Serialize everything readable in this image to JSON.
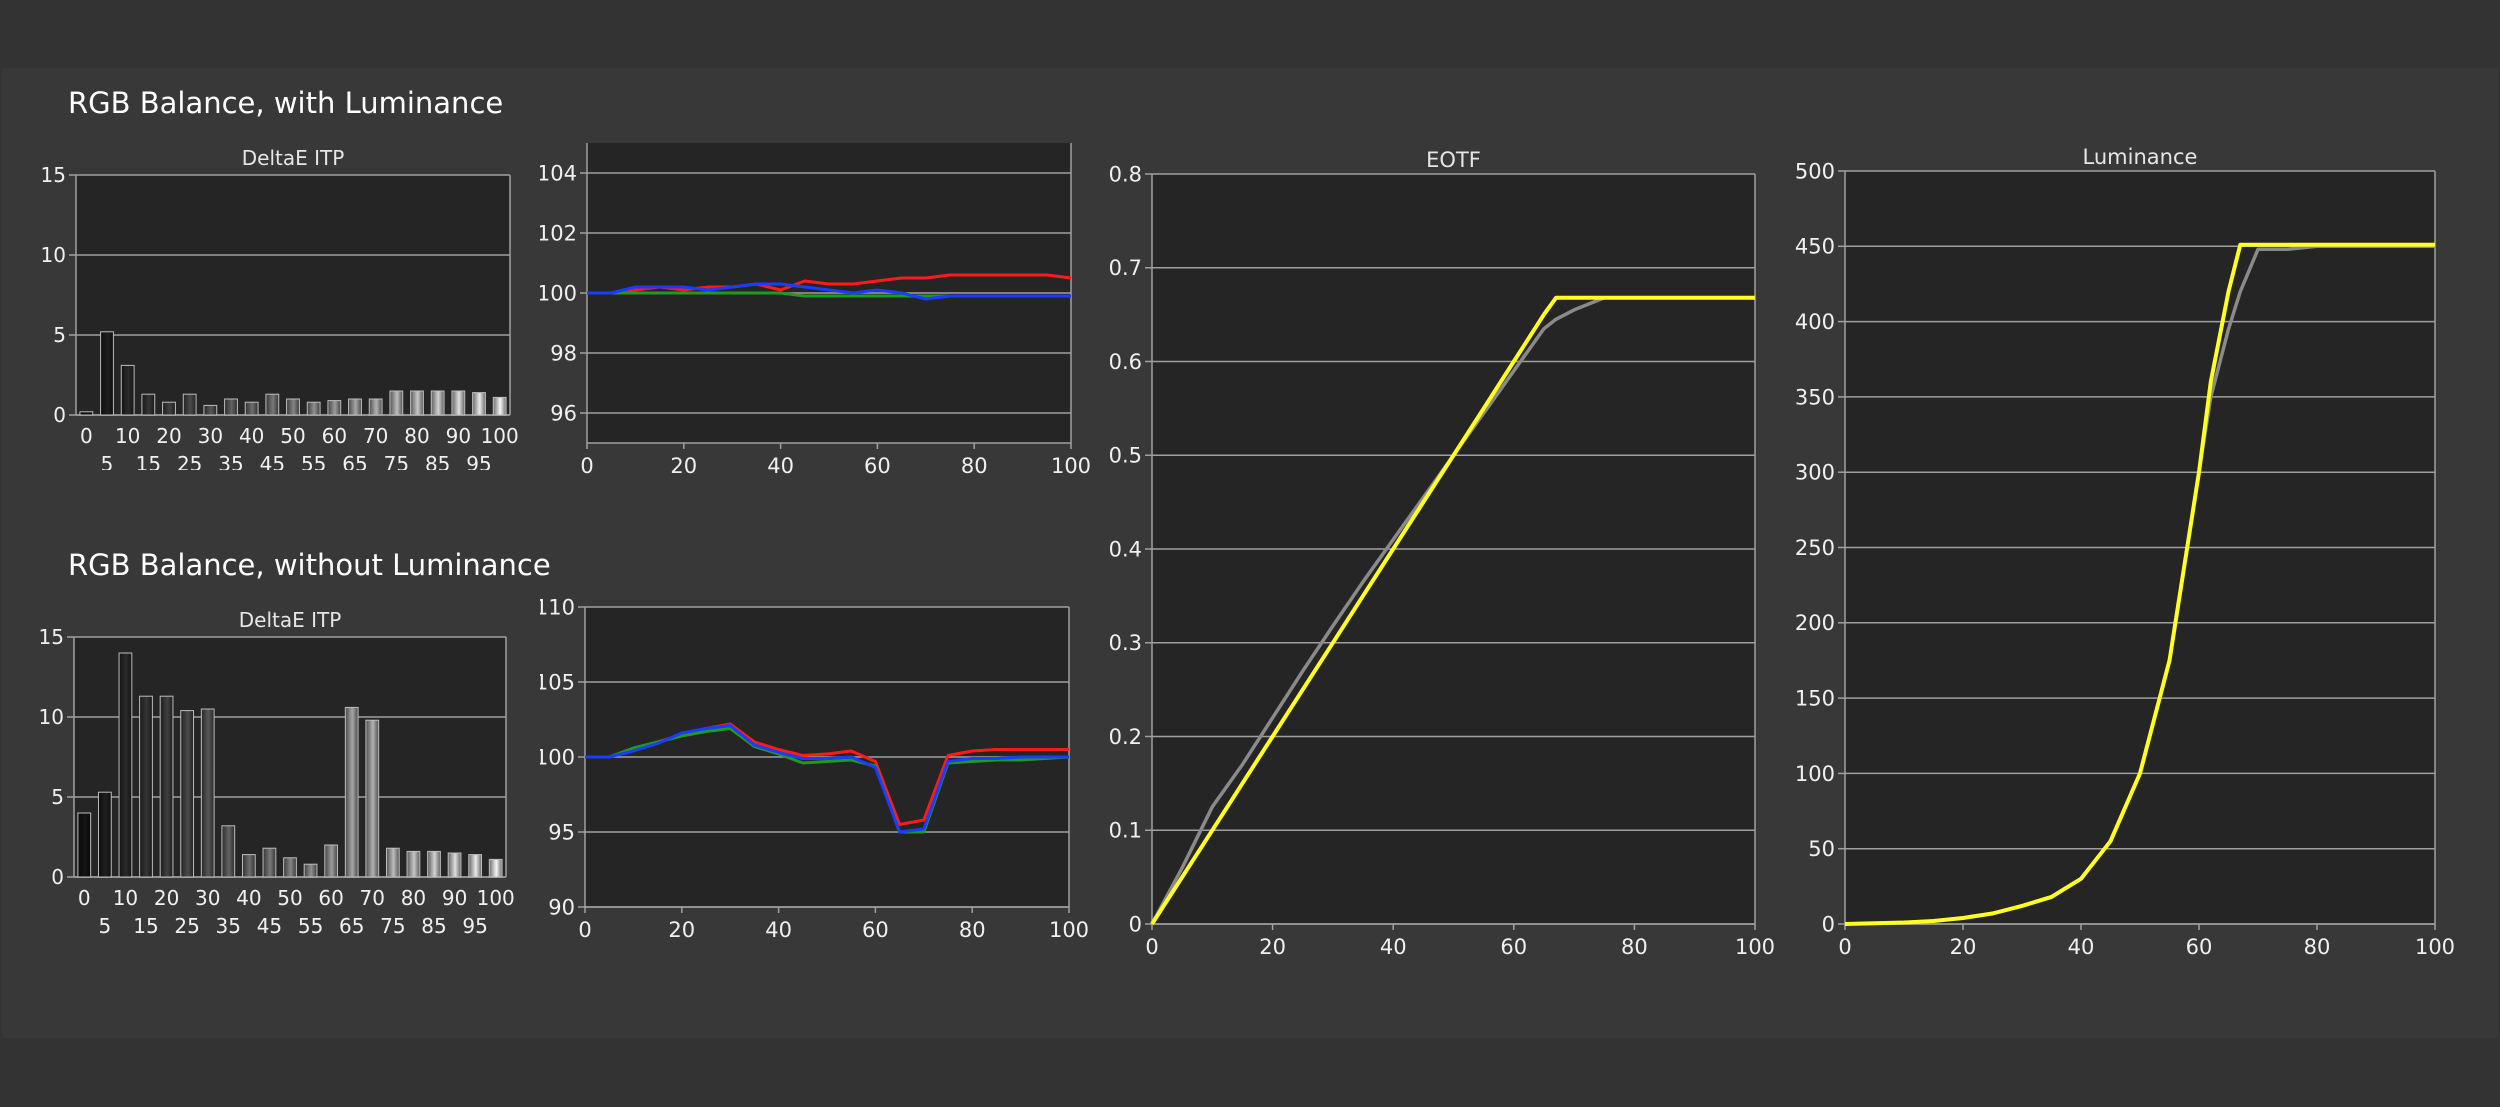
{
  "sections": {
    "with_luminance": "RGB Balance, with Luminance",
    "without_luminance": "RGB Balance, without Luminance"
  },
  "colors": {
    "plot_bg": "#252525",
    "grid": "#a0a0a0",
    "axis_text": "#f0f0f0",
    "red": "#ff1a1a",
    "green": "#1f9a1f",
    "blue": "#1a3cff",
    "target": "#8a8a8a",
    "measured": "#ffff22"
  },
  "chart_data": [
    {
      "id": "deltae-with",
      "type": "bar",
      "title": "DeltaE ITP",
      "categories": [
        "0",
        "5",
        "10",
        "15",
        "20",
        "25",
        "30",
        "35",
        "40",
        "45",
        "50",
        "55",
        "60",
        "65",
        "70",
        "75",
        "80",
        "85",
        "90",
        "95",
        "100"
      ],
      "values": [
        0.2,
        5.2,
        3.1,
        1.3,
        0.8,
        1.3,
        0.6,
        1.0,
        0.8,
        1.3,
        1.0,
        0.8,
        0.9,
        1.0,
        1.0,
        1.5,
        1.5,
        1.5,
        1.5,
        1.4,
        1.1
      ],
      "ylim": [
        0,
        15
      ],
      "yticks": [
        0,
        5,
        10,
        15
      ]
    },
    {
      "id": "rgb-with",
      "type": "line",
      "x": [
        0,
        5,
        10,
        15,
        20,
        25,
        30,
        35,
        40,
        45,
        50,
        55,
        60,
        65,
        70,
        75,
        80,
        85,
        90,
        95,
        100
      ],
      "series": [
        {
          "color_key": "red",
          "values": [
            100,
            100,
            100.1,
            100.2,
            100.1,
            100.2,
            100.2,
            100.3,
            100.1,
            100.4,
            100.3,
            100.3,
            100.4,
            100.5,
            100.5,
            100.6,
            100.6,
            100.6,
            100.6,
            100.6,
            100.5
          ]
        },
        {
          "color_key": "green",
          "values": [
            100,
            100,
            100,
            100,
            100,
            100,
            100,
            100,
            100,
            99.9,
            99.9,
            99.9,
            99.9,
            99.9,
            99.9,
            99.9,
            99.9,
            99.9,
            99.9,
            99.9,
            99.9
          ]
        },
        {
          "color_key": "blue",
          "values": [
            100,
            100,
            100.2,
            100.2,
            100.2,
            100.1,
            100.2,
            100.3,
            100.3,
            100.2,
            100.1,
            100,
            100.1,
            100,
            99.8,
            99.9,
            99.9,
            99.9,
            99.9,
            99.9,
            99.9
          ]
        }
      ],
      "xlim": [
        0,
        100
      ],
      "ylim": [
        95,
        105
      ],
      "xticks": [
        0,
        20,
        40,
        60,
        80,
        100
      ],
      "yticks": [
        96,
        98,
        100,
        102,
        104
      ]
    },
    {
      "id": "deltae-without",
      "type": "bar",
      "title": "DeltaE ITP",
      "categories": [
        "0",
        "5",
        "10",
        "15",
        "20",
        "25",
        "30",
        "35",
        "40",
        "45",
        "50",
        "55",
        "60",
        "65",
        "70",
        "75",
        "80",
        "85",
        "90",
        "95",
        "100"
      ],
      "values": [
        4.0,
        5.3,
        14.0,
        11.3,
        11.3,
        10.4,
        10.5,
        3.2,
        1.4,
        1.8,
        1.2,
        0.8,
        2.0,
        10.6,
        9.8,
        1.8,
        1.6,
        1.6,
        1.5,
        1.4,
        1.1
      ],
      "ylim": [
        0,
        15
      ],
      "yticks": [
        0,
        5,
        10,
        15
      ]
    },
    {
      "id": "rgb-without",
      "type": "line",
      "x": [
        0,
        5,
        10,
        15,
        20,
        25,
        30,
        35,
        40,
        45,
        50,
        55,
        60,
        65,
        70,
        75,
        80,
        85,
        90,
        95,
        100
      ],
      "series": [
        {
          "color_key": "red",
          "values": [
            100,
            100,
            100.5,
            101,
            101.5,
            101.9,
            102.2,
            101,
            100.5,
            100.1,
            100.2,
            100.4,
            99.7,
            95.5,
            95.8,
            100.1,
            100.4,
            100.5,
            100.5,
            100.5,
            100.5
          ]
        },
        {
          "color_key": "green",
          "values": [
            100,
            100,
            100.6,
            101,
            101.4,
            101.7,
            101.9,
            100.7,
            100.2,
            99.6,
            99.7,
            99.8,
            99.4,
            95,
            95,
            99.6,
            99.7,
            99.8,
            99.8,
            99.9,
            100
          ]
        },
        {
          "color_key": "blue",
          "values": [
            100,
            100,
            100.4,
            100.9,
            101.6,
            101.9,
            102.1,
            100.8,
            100.3,
            99.9,
            99.9,
            100,
            99.3,
            95,
            95.2,
            99.7,
            99.9,
            99.9,
            100,
            100,
            100
          ]
        }
      ],
      "xlim": [
        0,
        100
      ],
      "ylim": [
        90,
        110
      ],
      "xticks": [
        0,
        20,
        40,
        60,
        80,
        100
      ],
      "yticks": [
        90,
        95,
        100,
        105,
        110
      ]
    },
    {
      "id": "eotf",
      "type": "line",
      "title": "EOTF",
      "x": [
        0,
        5,
        10,
        15,
        20,
        25,
        30,
        35,
        40,
        45,
        50,
        55,
        60,
        65,
        67,
        70,
        75,
        80,
        85,
        90,
        95,
        100
      ],
      "series": [
        {
          "color_key": "target",
          "values": [
            0,
            0.06,
            0.125,
            0.17,
            0.22,
            0.27,
            0.318,
            0.365,
            0.41,
            0.455,
            0.5,
            0.545,
            0.59,
            0.635,
            0.645,
            0.655,
            0.668,
            0.668,
            0.668,
            0.668,
            0.668,
            0.668
          ]
        },
        {
          "color_key": "measured",
          "values": [
            0,
            0.05,
            0.1,
            0.15,
            0.2,
            0.25,
            0.3,
            0.35,
            0.4,
            0.45,
            0.5,
            0.55,
            0.6,
            0.65,
            0.668,
            0.668,
            0.668,
            0.668,
            0.668,
            0.668,
            0.668,
            0.668
          ]
        }
      ],
      "xlim": [
        0,
        100
      ],
      "ylim": [
        0,
        0.8
      ],
      "xticks": [
        0,
        20,
        40,
        60,
        80,
        100
      ],
      "yticks": [
        0,
        0.1,
        0.2,
        0.3,
        0.4,
        0.5,
        0.6,
        0.7,
        0.8
      ]
    },
    {
      "id": "luminance",
      "type": "line",
      "title": "Luminance",
      "x": [
        0,
        5,
        10,
        15,
        20,
        25,
        30,
        35,
        40,
        45,
        50,
        55,
        60,
        62,
        65,
        67,
        70,
        75,
        80,
        85,
        90,
        95,
        100
      ],
      "series": [
        {
          "color_key": "target",
          "values": [
            0,
            0.5,
            1,
            2,
            4,
            7,
            12,
            18,
            30,
            55,
            100,
            175,
            300,
            350,
            395,
            420,
            448,
            448,
            450,
            450,
            450,
            450,
            450
          ]
        },
        {
          "color_key": "measured",
          "values": [
            0,
            0.5,
            1,
            2,
            4,
            7,
            12,
            18,
            30,
            55,
            100,
            175,
            300,
            360,
            420,
            451,
            451,
            451,
            451,
            451,
            451,
            451,
            451
          ]
        }
      ],
      "xlim": [
        0,
        100
      ],
      "ylim": [
        0,
        500
      ],
      "xticks": [
        0,
        20,
        40,
        60,
        80,
        100
      ],
      "yticks": [
        0,
        50,
        100,
        150,
        200,
        250,
        300,
        350,
        400,
        450,
        500
      ]
    }
  ]
}
